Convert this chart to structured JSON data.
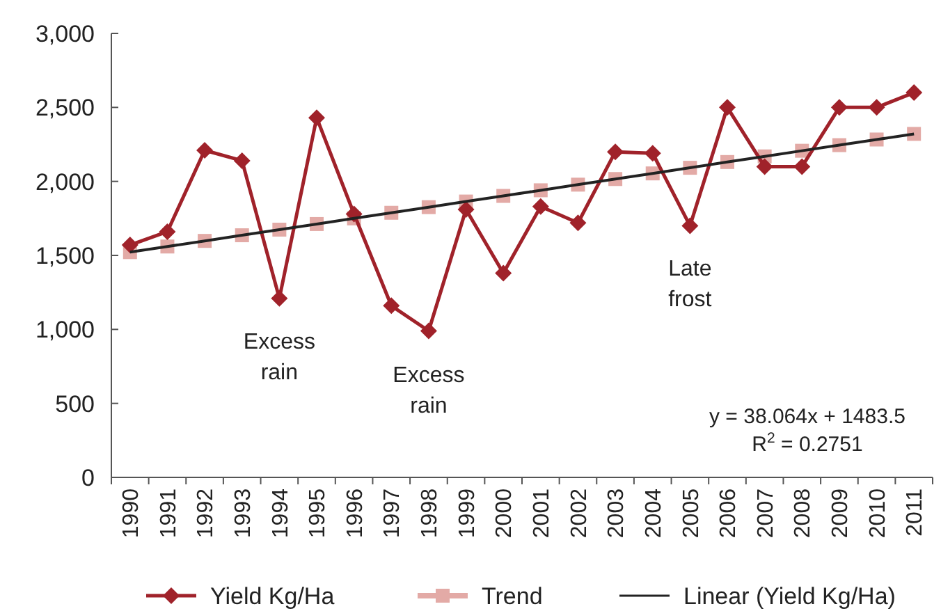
{
  "chart_data": {
    "type": "line",
    "categories": [
      "1990",
      "1991",
      "1992",
      "1993",
      "1994",
      "1995",
      "1996",
      "1997",
      "1998",
      "1999",
      "2000",
      "2001",
      "2002",
      "2003",
      "2004",
      "2005",
      "2006",
      "2007",
      "2008",
      "2009",
      "2010",
      "2011"
    ],
    "series": [
      {
        "name": "Yield Kg/Ha",
        "color": "#a0222a",
        "marker": "diamond",
        "values": [
          1570,
          1660,
          2210,
          2140,
          1210,
          2430,
          1780,
          1160,
          990,
          1810,
          1380,
          1830,
          1720,
          2200,
          2190,
          1700,
          2500,
          2100,
          2100,
          2500,
          2500,
          2600
        ]
      },
      {
        "name": "Trend",
        "type": "scatter",
        "color": "#e3aaa6",
        "marker": "square",
        "values": [
          1522,
          1560,
          1598,
          1636,
          1674,
          1712,
          1750,
          1788,
          1826,
          1864,
          1902,
          1940,
          1978,
          2016,
          2054,
          2092,
          2131,
          2169,
          2207,
          2245,
          2283,
          2321
        ]
      },
      {
        "name": "Linear (Yield Kg/Ha)",
        "color": "#222222",
        "marker": "none",
        "values": [
          1522,
          1560,
          1598,
          1636,
          1674,
          1712,
          1750,
          1788,
          1826,
          1864,
          1902,
          1940,
          1978,
          2016,
          2054,
          2092,
          2131,
          2169,
          2207,
          2245,
          2283,
          2321
        ]
      }
    ],
    "ylim": [
      0,
      3000
    ],
    "yticks": [
      {
        "value": 0,
        "label": "0"
      },
      {
        "value": 500,
        "label": "500"
      },
      {
        "value": 1000,
        "label": "1,000"
      },
      {
        "value": 1500,
        "label": "1,500"
      },
      {
        "value": 2000,
        "label": "2,000"
      },
      {
        "value": 2500,
        "label": "2,500"
      },
      {
        "value": 3000,
        "label": "3,000"
      }
    ],
    "grid": false,
    "legend": "bottom",
    "annotations": [
      {
        "text": "Excess rain",
        "x": "1994",
        "y": 1210
      },
      {
        "text": "Excess rain",
        "x": "1998",
        "y": 985
      },
      {
        "text": "Late frost",
        "x": "2005",
        "y": 1700
      },
      "y = 38.064x + 1483.5",
      "R$^{2}$ = 0.2751"
    ]
  }
}
